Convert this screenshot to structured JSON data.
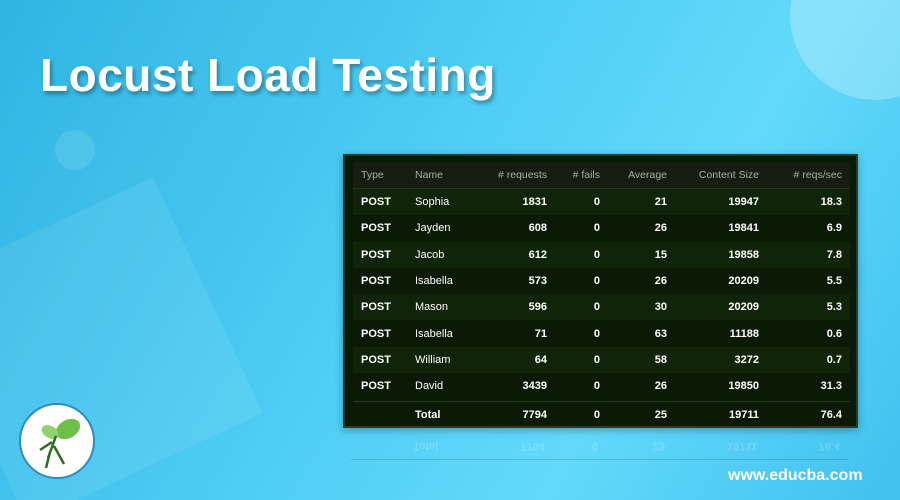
{
  "header": {
    "title": "Locust Load Testing"
  },
  "table": {
    "columns": [
      "Type",
      "Name",
      "# requests",
      "# fails",
      "Average",
      "Content Size",
      "# reqs/sec"
    ],
    "rows": [
      {
        "type": "POST",
        "name": "Sophia",
        "requests": 1831,
        "fails": 0,
        "average": 21,
        "content_size": 19947,
        "reqs_sec": 18.3
      },
      {
        "type": "POST",
        "name": "Jayden",
        "requests": 608,
        "fails": 0,
        "average": 26,
        "content_size": 19841,
        "reqs_sec": 6.9
      },
      {
        "type": "POST",
        "name": "Jacob",
        "requests": 612,
        "fails": 0,
        "average": 15,
        "content_size": 19858,
        "reqs_sec": 7.8
      },
      {
        "type": "POST",
        "name": "Isabella",
        "requests": 573,
        "fails": 0,
        "average": 26,
        "content_size": 20209,
        "reqs_sec": 5.5
      },
      {
        "type": "POST",
        "name": "Mason",
        "requests": 596,
        "fails": 0,
        "average": 30,
        "content_size": 20209,
        "reqs_sec": 5.3
      },
      {
        "type": "POST",
        "name": "Isabella",
        "requests": 71,
        "fails": 0,
        "average": 63,
        "content_size": 11188,
        "reqs_sec": 0.6
      },
      {
        "type": "POST",
        "name": "William",
        "requests": 64,
        "fails": 0,
        "average": 58,
        "content_size": 3272,
        "reqs_sec": 0.7
      },
      {
        "type": "POST",
        "name": "David",
        "requests": 3439,
        "fails": 0,
        "average": 26,
        "content_size": 19850,
        "reqs_sec": 31.3
      }
    ],
    "total": {
      "name": "Total",
      "requests": 7794,
      "fails": 0,
      "average": 25,
      "content_size": 19711,
      "reqs_sec": 76.4
    }
  },
  "footer": {
    "website": "www.educba.com"
  }
}
